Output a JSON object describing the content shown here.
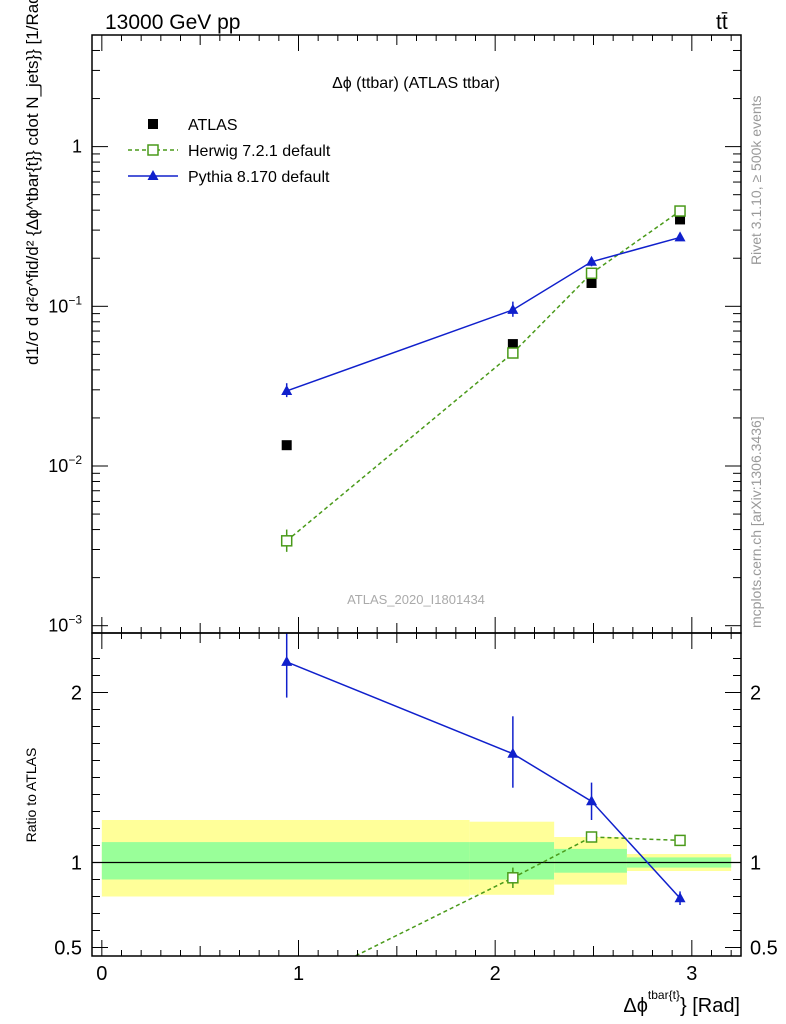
{
  "header": {
    "energy_label": "13000 GeV pp",
    "process_label": "tt̄"
  },
  "side_labels": {
    "rivet": "Rivet 3.1.10, ≥ 500k events",
    "mcplots": "mcplots.cern.ch [arXiv:1306.3436]"
  },
  "chart_data": [
    {
      "panel": "main",
      "type": "line",
      "title": "Δϕ (ttbar) (ATLAS ttbar)",
      "watermark": "ATLAS_2020_I1801434",
      "ylabel": "d1/σ d d²σ^fid/d² {Δϕ^tbar{t}} cdot N_jets}} [1/Rad]",
      "yscale": "log",
      "ylim": [
        0.0009,
        5
      ],
      "xlim": [
        -0.05,
        3.25
      ],
      "yticks": [
        {
          "value": 0.001,
          "label": "10",
          "exp": "−3"
        },
        {
          "value": 0.01,
          "label": "10",
          "exp": "−2"
        },
        {
          "value": 0.1,
          "label": "10",
          "exp": "−1"
        },
        {
          "value": 1,
          "label": "1",
          "exp": ""
        }
      ],
      "legend_position": "top-left",
      "series": [
        {
          "name": "ATLAS",
          "color": "#000000",
          "marker": "filled-square",
          "points": [
            {
              "x": 0.94,
              "y": 0.0135
            },
            {
              "x": 2.09,
              "y": 0.058
            },
            {
              "x": 2.49,
              "y": 0.14
            },
            {
              "x": 2.94,
              "y": 0.35
            }
          ]
        },
        {
          "name": "Herwig 7.2.1 default",
          "color": "#4a9a1a",
          "marker": "open-square",
          "line": "dashed",
          "points": [
            {
              "x": 0.94,
              "y": 0.0034,
              "ylo": 0.0029,
              "yhi": 0.004
            },
            {
              "x": 2.09,
              "y": 0.051,
              "ylo": 0.048,
              "yhi": 0.054
            },
            {
              "x": 2.49,
              "y": 0.161,
              "ylo": 0.153,
              "yhi": 0.169
            },
            {
              "x": 2.94,
              "y": 0.395,
              "ylo": 0.385,
              "yhi": 0.405
            }
          ]
        },
        {
          "name": "Pythia 8.170 default",
          "color": "#1020cc",
          "marker": "filled-triangle",
          "line": "solid",
          "points": [
            {
              "x": 0.94,
              "y": 0.0295,
              "ylo": 0.027,
              "yhi": 0.033
            },
            {
              "x": 2.09,
              "y": 0.095,
              "ylo": 0.086,
              "yhi": 0.107
            },
            {
              "x": 2.49,
              "y": 0.19,
              "ylo": 0.178,
              "yhi": 0.203
            },
            {
              "x": 2.94,
              "y": 0.27,
              "ylo": 0.262,
              "yhi": 0.28
            }
          ]
        }
      ]
    },
    {
      "panel": "ratio",
      "type": "line",
      "ylabel": "Ratio to ATLAS",
      "xlabel": "Δϕ",
      "xlabel_sup": "tbar{t}",
      "xlabel_suffix": "} [Rad]",
      "ylim": [
        0.45,
        2.35
      ],
      "xlim": [
        -0.05,
        3.25
      ],
      "xticks": [
        0,
        1,
        2,
        3
      ],
      "yticks": [
        0.5,
        1,
        2
      ],
      "reference_line": 1,
      "bands": [
        {
          "x0": 0.0,
          "x1": 1.87,
          "yellow": [
            0.8,
            1.25
          ],
          "green": [
            0.9,
            1.12
          ]
        },
        {
          "x0": 1.87,
          "x1": 2.3,
          "yellow": [
            0.81,
            1.24
          ],
          "green": [
            0.9,
            1.12
          ]
        },
        {
          "x0": 2.3,
          "x1": 2.67,
          "yellow": [
            0.87,
            1.15
          ],
          "green": [
            0.94,
            1.08
          ]
        },
        {
          "x0": 2.67,
          "x1": 3.2,
          "yellow": [
            0.95,
            1.05
          ],
          "green": [
            0.97,
            1.03
          ]
        }
      ],
      "series": [
        {
          "name": "Herwig 7.2.1 default",
          "color": "#4a9a1a",
          "marker": "open-square",
          "line": "dashed",
          "points": [
            {
              "x": 0.94,
              "y": 0.25,
              "ylo": 0.22,
              "yhi": 0.29
            },
            {
              "x": 2.09,
              "y": 0.91,
              "ylo": 0.85,
              "yhi": 0.97
            },
            {
              "x": 2.49,
              "y": 1.15,
              "ylo": 1.12,
              "yhi": 1.18
            },
            {
              "x": 2.94,
              "y": 1.13,
              "ylo": 1.11,
              "yhi": 1.15
            }
          ]
        },
        {
          "name": "Pythia 8.170 default",
          "color": "#1020cc",
          "marker": "filled-triangle",
          "line": "solid",
          "points": [
            {
              "x": 0.94,
              "y": 2.18,
              "ylo": 1.97,
              "yhi": 2.4
            },
            {
              "x": 2.09,
              "y": 1.64,
              "ylo": 1.44,
              "yhi": 1.86
            },
            {
              "x": 2.49,
              "y": 1.36,
              "ylo": 1.25,
              "yhi": 1.47
            },
            {
              "x": 2.94,
              "y": 0.79,
              "ylo": 0.75,
              "yhi": 0.83
            }
          ]
        }
      ]
    }
  ]
}
